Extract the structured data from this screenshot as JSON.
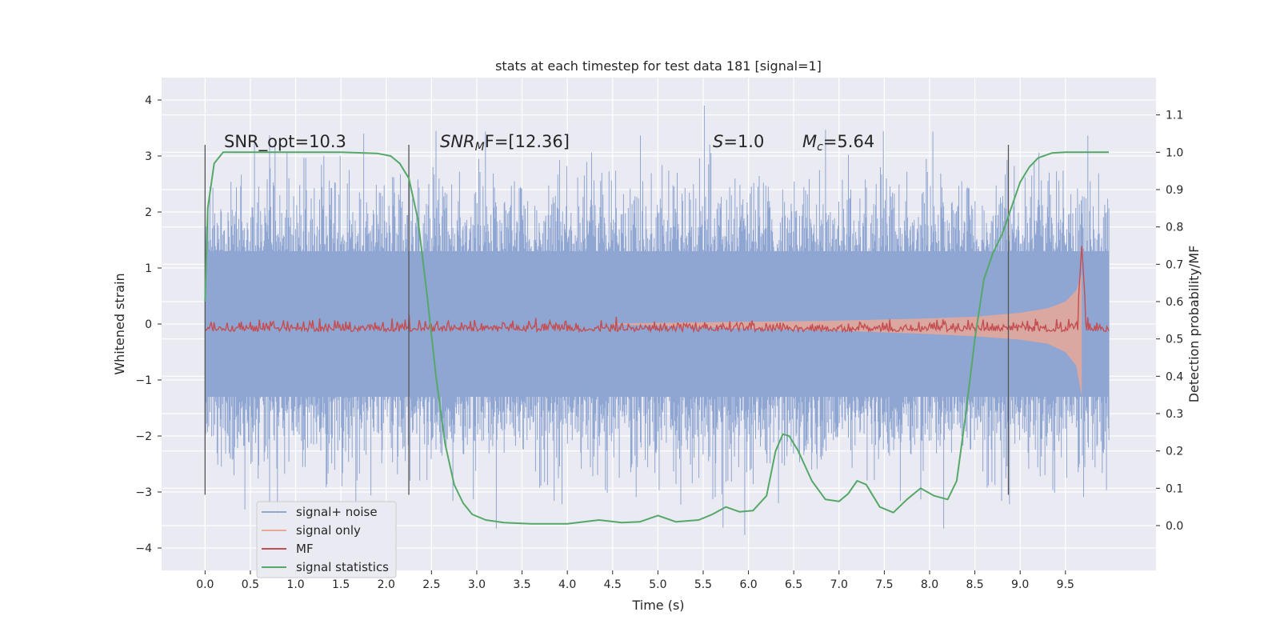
{
  "chart_data": {
    "type": "line",
    "title": "stats at each timestep for test data 181 [signal=1]",
    "xlabel": "Time (s)",
    "ylabel": "Whitened strain",
    "y2label": "Detection probability/MF",
    "xlim": [
      -0.48,
      10.5
    ],
    "ylim": [
      -4.4,
      4.4
    ],
    "y2lim": [
      -0.12,
      1.2
    ],
    "x_ticks": [
      "0.0",
      "0.5",
      "1.0",
      "1.5",
      "2.0",
      "2.5",
      "3.0",
      "3.5",
      "4.0",
      "4.5",
      "5.0",
      "5.5",
      "6.0",
      "6.5",
      "7.0",
      "7.5",
      "8.0",
      "8.5",
      "9.0",
      "9.5"
    ],
    "y_ticks": [
      "4",
      "3",
      "2",
      "1",
      "0",
      "−1",
      "−2",
      "−3",
      "−4"
    ],
    "y2_ticks": [
      "1.1",
      "1.0",
      "0.9",
      "0.8",
      "0.7",
      "0.6",
      "0.5",
      "0.4",
      "0.3",
      "0.2",
      "0.1",
      "0.0"
    ],
    "grid": true,
    "legend_position": "lower-left",
    "annotations": {
      "snr_opt": "SNR_opt=10.3",
      "snr_mf_var": "SNR",
      "snr_mf_sub": "M",
      "snr_mf_rest": "F=[12.36]",
      "s_var": "S",
      "s_rest": "=1.0",
      "mc_var": "M",
      "mc_sub": "c",
      "mc_rest": "=5.64"
    },
    "vertical_markers_x": [
      0.0,
      2.25,
      8.87
    ],
    "series": [
      {
        "name": "signal+ noise",
        "color": "#8fa6d2",
        "description_level": "noise band approx ±1.3 with spikes up to ±4",
        "x_range": [
          0.0,
          9.98
        ],
        "approx_envelope": [
          1.3,
          -1.3
        ]
      },
      {
        "name": "signal only",
        "color": "#e8a898",
        "x": [
          4.5,
          5.0,
          5.5,
          6.0,
          6.5,
          7.0,
          7.5,
          8.0,
          8.5,
          9.0,
          9.3,
          9.5,
          9.62,
          9.68
        ],
        "upper": [
          0.01,
          0.02,
          0.03,
          0.04,
          0.05,
          0.06,
          0.08,
          0.1,
          0.13,
          0.2,
          0.28,
          0.4,
          0.6,
          0.9
        ],
        "lower": [
          -0.01,
          -0.03,
          -0.06,
          -0.08,
          -0.1,
          -0.12,
          -0.15,
          -0.18,
          -0.22,
          -0.28,
          -0.35,
          -0.5,
          -0.75,
          -1.3
        ]
      },
      {
        "name": "MF",
        "color": "#c44e52",
        "axis": "right",
        "baseline": 0.52,
        "peak_x": 9.68,
        "peak_value": 0.75,
        "x_range": [
          0.0,
          9.98
        ]
      },
      {
        "name": "signal statistics",
        "color": "#55a868",
        "axis": "right",
        "x": [
          0.0,
          0.03,
          0.1,
          0.2,
          0.5,
          1.0,
          1.5,
          1.9,
          2.05,
          2.15,
          2.25,
          2.35,
          2.45,
          2.55,
          2.65,
          2.75,
          2.85,
          2.95,
          3.1,
          3.3,
          3.6,
          4.0,
          4.35,
          4.6,
          4.8,
          5.0,
          5.2,
          5.45,
          5.6,
          5.75,
          5.9,
          6.05,
          6.2,
          6.3,
          6.38,
          6.45,
          6.55,
          6.7,
          6.85,
          7.0,
          7.1,
          7.2,
          7.3,
          7.45,
          7.6,
          7.75,
          7.9,
          8.05,
          8.2,
          8.3,
          8.4,
          8.5,
          8.6,
          8.7,
          8.8,
          8.9,
          9.0,
          9.1,
          9.2,
          9.35,
          9.5,
          9.7,
          9.98
        ],
        "y": [
          0.6,
          0.85,
          0.97,
          1.0,
          1.0,
          1.0,
          1.0,
          0.997,
          0.99,
          0.97,
          0.93,
          0.82,
          0.62,
          0.4,
          0.22,
          0.11,
          0.06,
          0.03,
          0.015,
          0.008,
          0.005,
          0.005,
          0.015,
          0.008,
          0.01,
          0.027,
          0.01,
          0.015,
          0.03,
          0.05,
          0.037,
          0.04,
          0.08,
          0.2,
          0.245,
          0.24,
          0.2,
          0.12,
          0.07,
          0.065,
          0.085,
          0.12,
          0.11,
          0.05,
          0.035,
          0.07,
          0.1,
          0.08,
          0.07,
          0.12,
          0.3,
          0.5,
          0.66,
          0.73,
          0.78,
          0.85,
          0.92,
          0.96,
          0.985,
          0.998,
          1.0,
          1.0,
          1.0
        ]
      }
    ]
  }
}
